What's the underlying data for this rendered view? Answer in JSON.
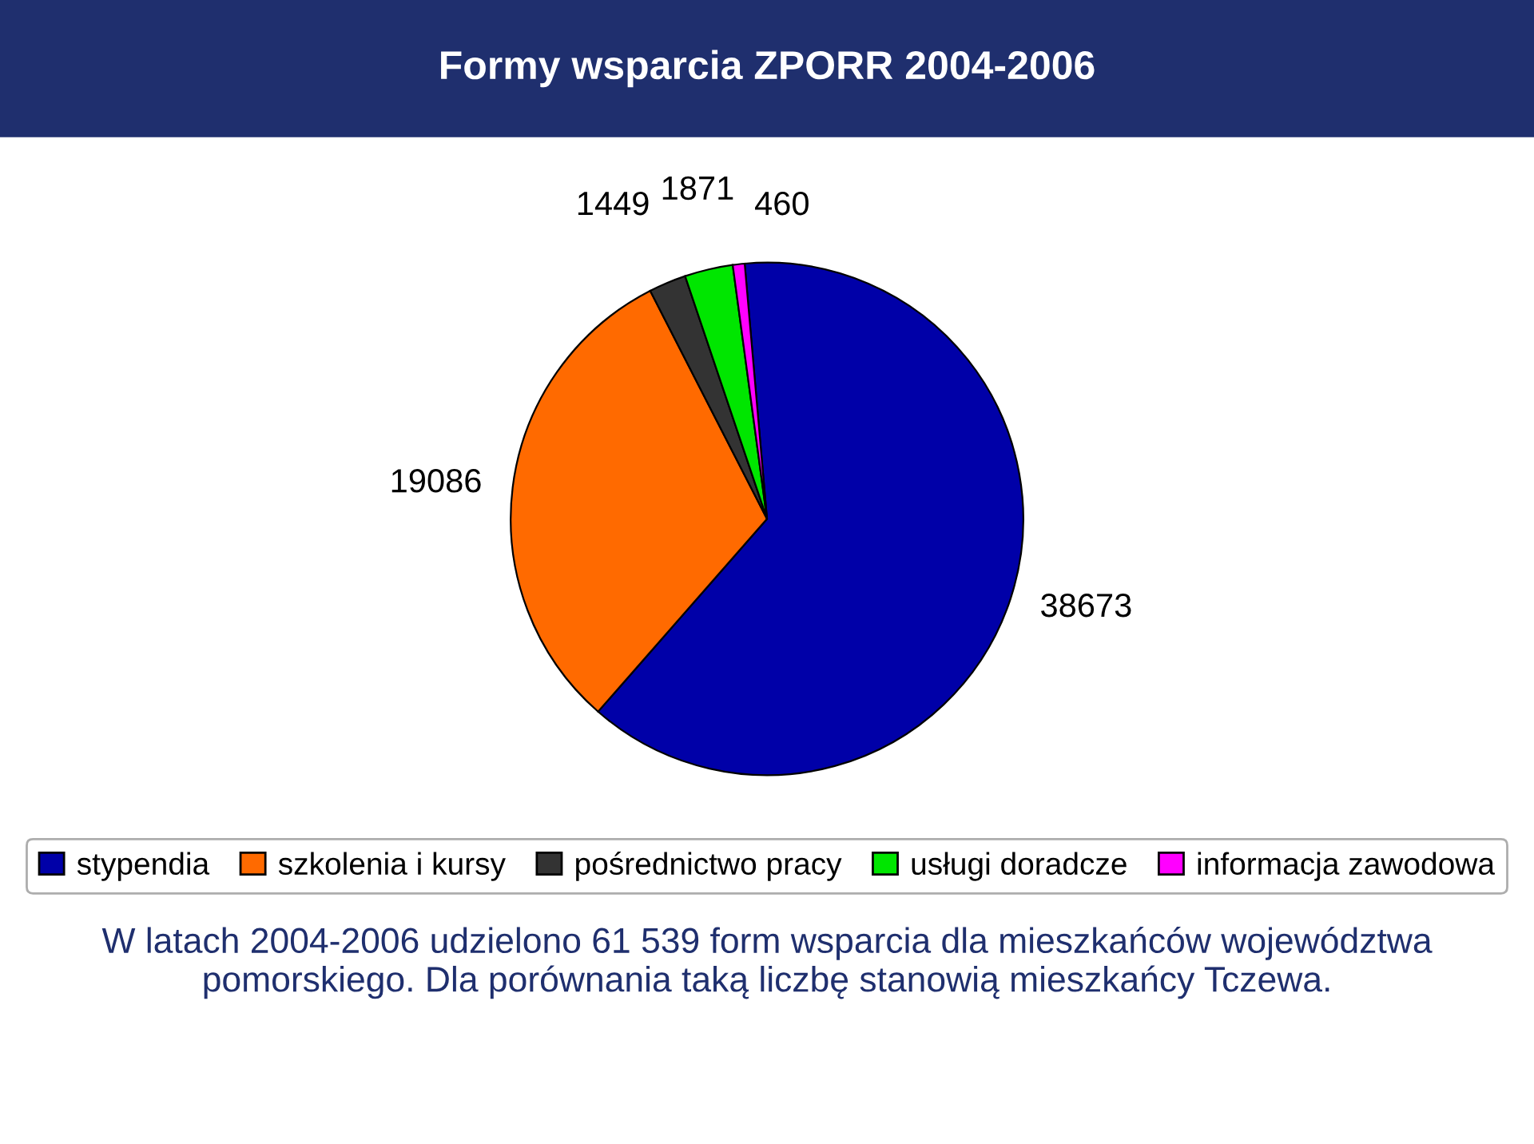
{
  "chart_data": {
    "type": "pie",
    "title": "Formy wsparcia ZPORR 2004-2006",
    "categories": [
      "stypendia",
      "szkolenia i kursy",
      "pośrednictwo pracy",
      "usługi doradcze",
      "informacja zawodowa"
    ],
    "values": [
      38673,
      19086,
      1449,
      1871,
      460
    ],
    "colors": [
      "#0000a8",
      "#ff6a00",
      "#333333",
      "#00e600",
      "#ff00ff"
    ],
    "data_labels": true,
    "legend": "bottom",
    "annotations": [
      "W latach 2004-2006 udzielono 61 539 form wsparcia dla mieszkańców województwa pomorskiego. Dla porównania taką liczbę stanowią mieszkańcy Tczewa."
    ]
  }
}
